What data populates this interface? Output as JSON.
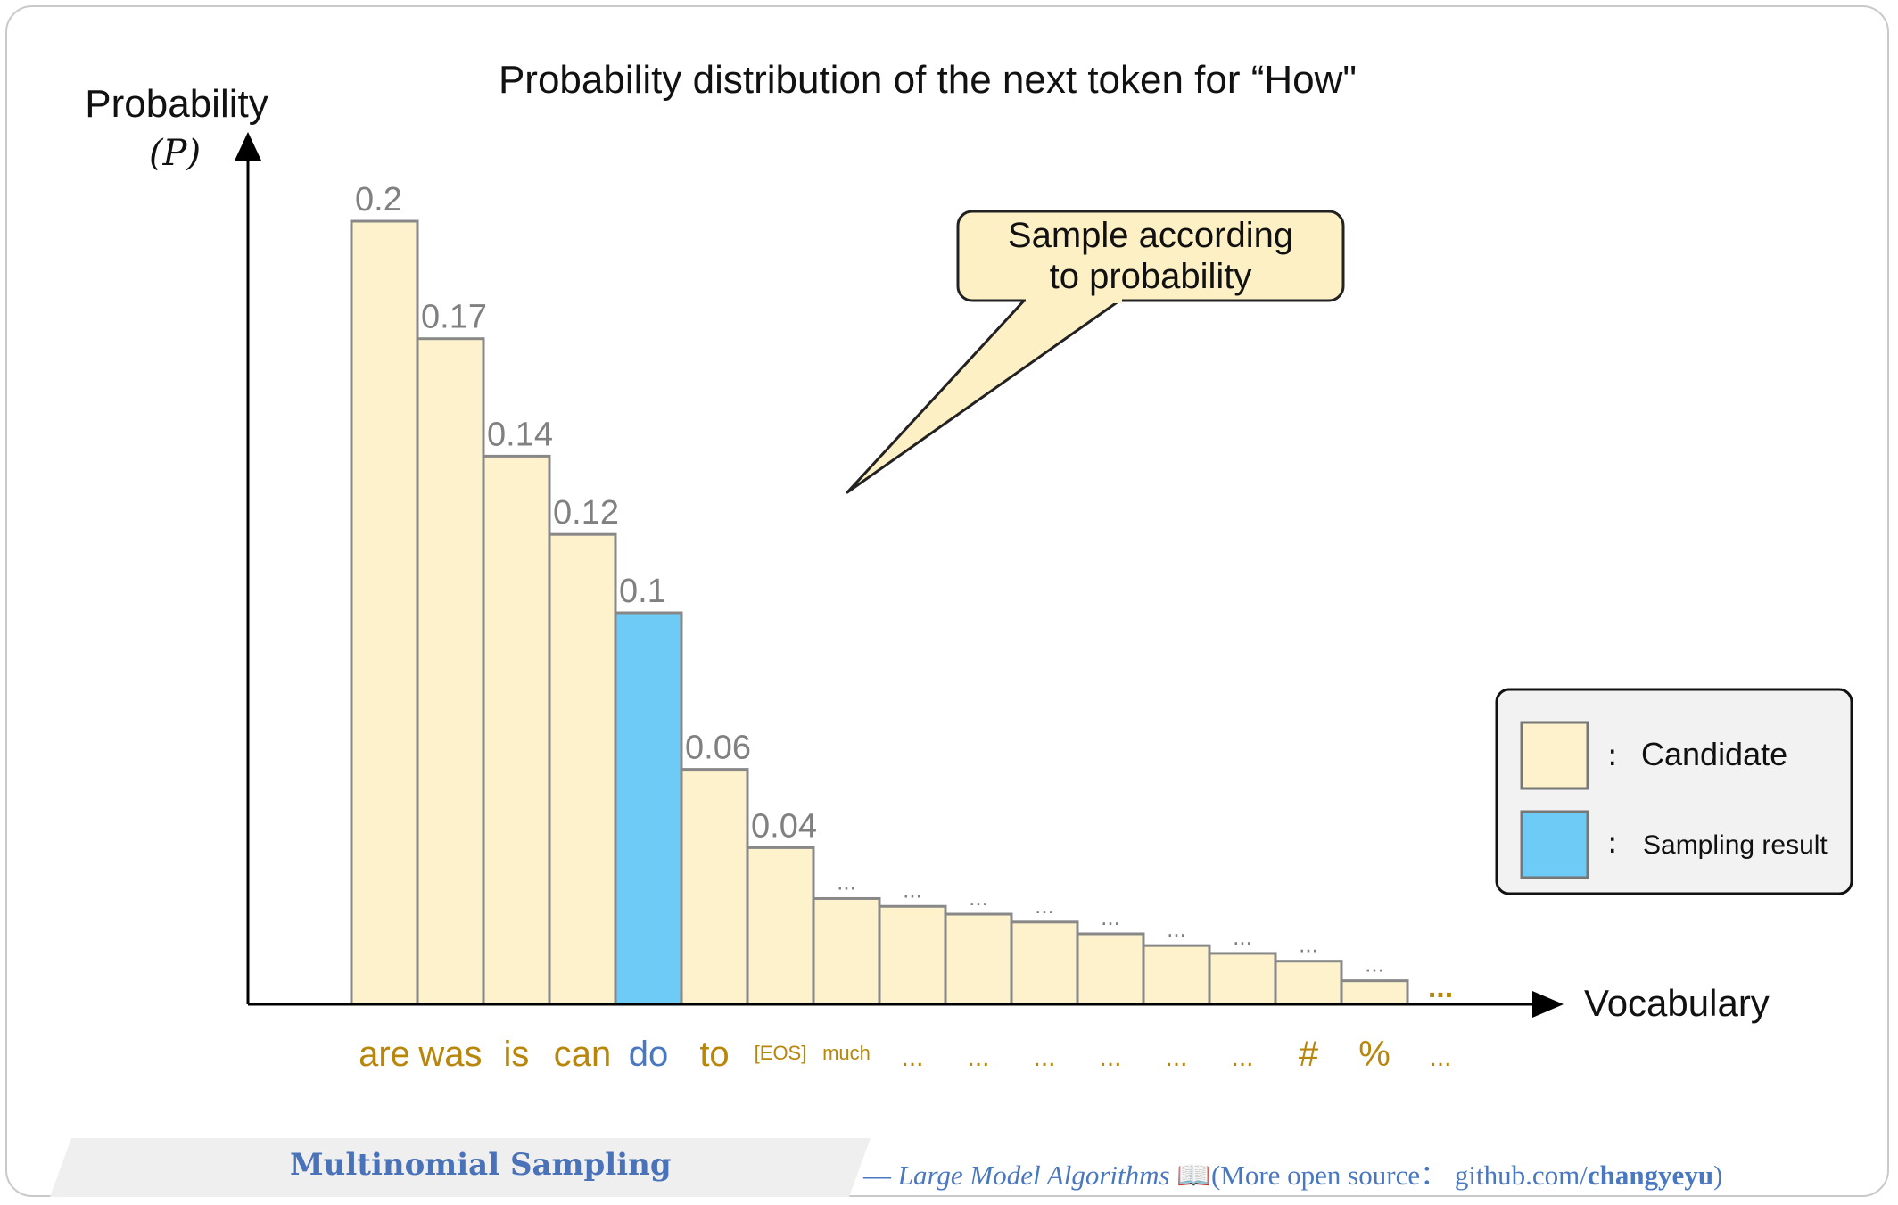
{
  "chart_data": {
    "type": "bar",
    "title": "Probability distribution of the next token for “How\"",
    "ylabel": "Probability",
    "ylabel_symbol": "(P)",
    "xlabel": "Vocabulary",
    "categories": [
      "are",
      "was",
      "is",
      "can",
      "do",
      "to",
      "[EOS]",
      "much",
      "...",
      "...",
      "...",
      "...",
      "...",
      "...",
      "#",
      "%"
    ],
    "values": [
      0.2,
      0.17,
      0.14,
      0.12,
      0.1,
      0.06,
      0.04,
      0.027,
      0.025,
      0.023,
      0.021,
      0.018,
      0.015,
      0.013,
      0.011,
      0.006
    ],
    "value_labels": [
      "0.2",
      "0.17",
      "0.14",
      "0.12",
      "0.1",
      "0.06",
      "0.04",
      "...",
      "...",
      "...",
      "...",
      "...",
      "...",
      "...",
      "...",
      "..."
    ],
    "trailing_bar_label": "...",
    "trailing_category": "...",
    "highlight_index": 4,
    "ylim": [
      0,
      0.2
    ],
    "grid": false,
    "legend": {
      "position": "right",
      "items": [
        {
          "label": "Candidate",
          "color": "#fdf2cc"
        },
        {
          "label": "Sampling result",
          "color": "#6ecbf5"
        }
      ],
      "separator": ":"
    },
    "callout": {
      "lines": [
        "Sample according",
        "to probability"
      ],
      "color": "#fdf0c4"
    },
    "colors": {
      "candidate": "#fdf2cc",
      "sampled": "#6ecbf5",
      "bar_stroke": "#888888",
      "candidate_label": "#b8860b",
      "sampled_label": "#4a78c0",
      "value_label": "#808080"
    }
  },
  "footer": {
    "left_title": "Multinomial Sampling",
    "dash": "— ",
    "book_title": "Large Model Algorithms",
    "book_icon": "📖",
    "source_prefix": "(More open source： github.com/",
    "source_user": "changyeyu",
    "source_suffix": ")"
  }
}
